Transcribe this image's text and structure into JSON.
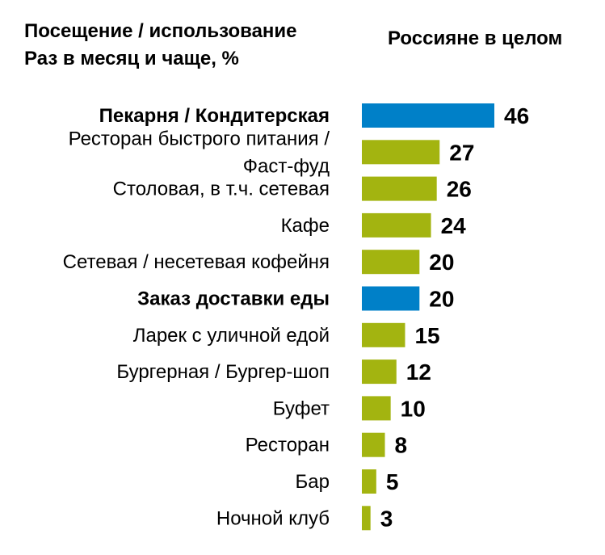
{
  "title_lines": [
    "Посещение / использование",
    "Раз в месяц и чаще, %"
  ],
  "series_header": "Россияне в целом",
  "colors": {
    "highlight": "#0080C8",
    "default": "#A3B410"
  },
  "chart_data": {
    "type": "bar",
    "orientation": "horizontal",
    "series": [
      {
        "name": "Россияне в целом",
        "values": [
          46,
          27,
          26,
          24,
          20,
          20,
          15,
          12,
          10,
          8,
          5,
          3
        ]
      }
    ],
    "categories": [
      {
        "lines": [
          "Пекарня / Кондитерская"
        ],
        "bold": true,
        "highlight": true
      },
      {
        "lines": [
          "Ресторан быстрого питания /",
          "Фаст-фуд"
        ],
        "bold": false,
        "highlight": false
      },
      {
        "lines": [
          "Столовая, в т.ч. сетевая"
        ],
        "bold": false,
        "highlight": false
      },
      {
        "lines": [
          "Кафе"
        ],
        "bold": false,
        "highlight": false
      },
      {
        "lines": [
          "Сетевая / несетевая кофейня"
        ],
        "bold": false,
        "highlight": false
      },
      {
        "lines": [
          "Заказ доставки еды"
        ],
        "bold": true,
        "highlight": true
      },
      {
        "lines": [
          "Ларек с уличной едой"
        ],
        "bold": false,
        "highlight": false
      },
      {
        "lines": [
          "Бургерная / Бургер-шоп"
        ],
        "bold": false,
        "highlight": false
      },
      {
        "lines": [
          "Буфет"
        ],
        "bold": false,
        "highlight": false
      },
      {
        "lines": [
          "Ресторан"
        ],
        "bold": false,
        "highlight": false
      },
      {
        "lines": [
          "Бар"
        ],
        "bold": false,
        "highlight": false
      },
      {
        "lines": [
          "Ночной клуб"
        ],
        "bold": false,
        "highlight": false
      }
    ],
    "value_labels": [
      "46",
      "27",
      "26",
      "24",
      "20",
      "20",
      "15",
      "12",
      "10",
      "8",
      "5",
      "3"
    ],
    "xlim": [
      0,
      46
    ]
  }
}
